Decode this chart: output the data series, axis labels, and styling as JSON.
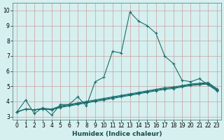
{
  "xlabel": "Humidex (Indice chaleur)",
  "background_color": "#d6efef",
  "grid_color": "#c0dada",
  "line_color": "#1a6e6e",
  "xlim": [
    -0.5,
    23.5
  ],
  "ylim": [
    2.8,
    10.5
  ],
  "xticks": [
    0,
    1,
    2,
    3,
    4,
    5,
    6,
    7,
    8,
    9,
    10,
    11,
    12,
    13,
    14,
    15,
    16,
    17,
    18,
    19,
    20,
    21,
    22,
    23
  ],
  "yticks": [
    3,
    4,
    5,
    6,
    7,
    8,
    9,
    10
  ],
  "lines": [
    {
      "x": [
        0,
        1,
        2,
        3,
        4,
        5,
        6,
        7,
        8,
        9,
        10,
        11,
        12,
        13,
        14,
        15,
        16,
        17,
        18,
        19,
        20,
        21,
        22,
        23
      ],
      "y": [
        3.3,
        4.1,
        3.2,
        3.6,
        3.1,
        3.8,
        3.8,
        4.3,
        3.7,
        5.3,
        5.6,
        7.3,
        7.2,
        9.9,
        9.3,
        9.0,
        8.5,
        7.0,
        6.5,
        5.4,
        5.3,
        5.5,
        5.1,
        4.7
      ]
    },
    {
      "x": [
        0,
        1,
        2,
        3,
        4,
        5,
        6,
        7,
        8,
        9,
        10,
        11,
        12,
        13,
        14,
        15,
        16,
        17,
        18,
        19,
        20,
        21,
        22,
        23
      ],
      "y": [
        3.3,
        3.5,
        3.45,
        3.5,
        3.45,
        3.6,
        3.7,
        3.8,
        3.9,
        4.0,
        4.1,
        4.2,
        4.3,
        4.4,
        4.5,
        4.6,
        4.7,
        4.8,
        4.85,
        4.95,
        5.05,
        5.1,
        5.15,
        4.75
      ]
    },
    {
      "x": [
        0,
        1,
        2,
        3,
        4,
        5,
        6,
        7,
        8,
        9,
        10,
        11,
        12,
        13,
        14,
        15,
        16,
        17,
        18,
        19,
        20,
        21,
        22,
        23
      ],
      "y": [
        3.3,
        3.5,
        3.45,
        3.5,
        3.45,
        3.65,
        3.75,
        3.85,
        3.95,
        4.05,
        4.15,
        4.25,
        4.35,
        4.45,
        4.55,
        4.65,
        4.75,
        4.85,
        4.9,
        5.0,
        5.1,
        5.15,
        5.2,
        4.8
      ]
    },
    {
      "x": [
        0,
        1,
        2,
        3,
        4,
        5,
        6,
        7,
        8,
        9,
        10,
        11,
        12,
        13,
        14,
        15,
        16,
        17,
        18,
        19,
        20,
        21,
        22,
        23
      ],
      "y": [
        3.3,
        3.5,
        3.45,
        3.55,
        3.5,
        3.7,
        3.8,
        3.9,
        4.0,
        4.1,
        4.2,
        4.3,
        4.4,
        4.5,
        4.6,
        4.7,
        4.8,
        4.9,
        4.95,
        5.05,
        5.15,
        5.2,
        5.25,
        4.85
      ]
    }
  ]
}
